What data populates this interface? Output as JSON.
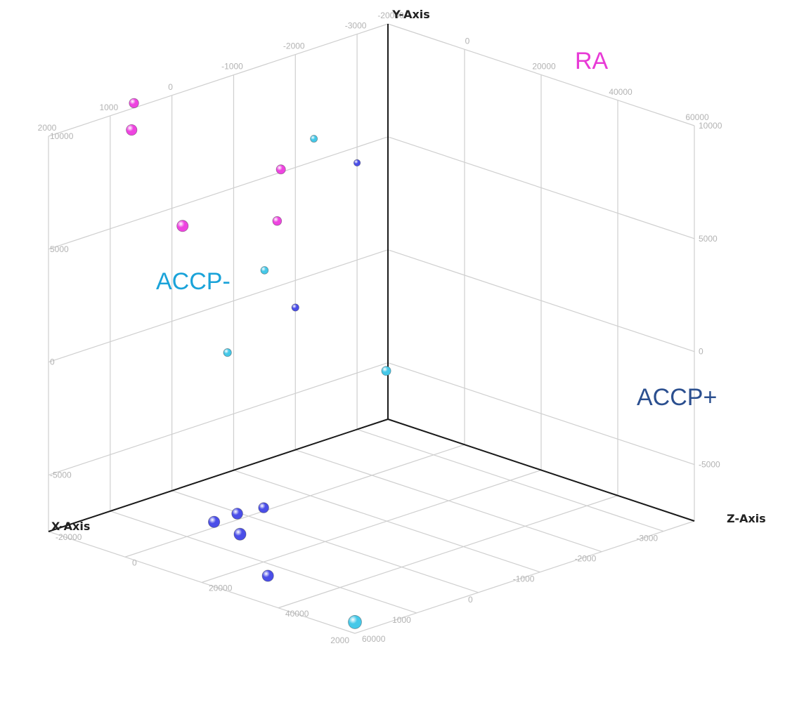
{
  "chart_data": {
    "type": "scatter",
    "projection": "3d",
    "grid": true,
    "x_label": "X-Axis",
    "y_label": "Y-Axis",
    "z_label": "Z-Axis",
    "x_ticks": [
      -3000,
      -2000,
      -1000,
      0,
      1000,
      2000
    ],
    "x_tick_labels": [
      "-3000",
      "-2000",
      "-1000",
      "0",
      "1000",
      "2000"
    ],
    "y_ticks": [
      -5000,
      0,
      5000,
      10000
    ],
    "y_tick_labels": [
      "-5000",
      "0",
      "5000",
      "10000"
    ],
    "z_ticks": [
      -20000,
      0,
      20000,
      40000,
      60000
    ],
    "z_tick_labels": [
      "-20000",
      "0",
      "20000",
      "40000",
      "60000"
    ],
    "xlim": [
      -3500,
      2000
    ],
    "ylim": [
      -7500,
      10000
    ],
    "zlim": [
      -20000,
      60000
    ],
    "annotations": [
      {
        "text": "RA",
        "color": "#e83ad6"
      },
      {
        "text": "ACCP-",
        "color": "#1aa3d9"
      },
      {
        "text": "ACCP+",
        "color": "#2b4f8f"
      }
    ],
    "series": [
      {
        "color": "#ee44e0",
        "points": [
          {
            "x": 1050,
            "y": 11000,
            "z": -13000
          },
          {
            "x": 2000,
            "y": 11500,
            "z": 1700
          },
          {
            "x": 2000,
            "y": 8000,
            "z": 15000
          },
          {
            "x": -400,
            "y": 7600,
            "z": 2000
          },
          {
            "x": -600,
            "y": 4900,
            "z": -2200
          }
        ]
      },
      {
        "color": "#45c8e8",
        "points": [
          {
            "x": -2300,
            "y": 6000,
            "z": -20000
          },
          {
            "x": -900,
            "y": -2200,
            "z": -20000
          },
          {
            "x": -1500,
            "y": 900,
            "z": -20000
          },
          {
            "x": -1300,
            "y": -1400,
            "z": 15000
          },
          {
            "x": 2000,
            "y": -7000,
            "z": 60000
          }
        ]
      },
      {
        "color": "#4a4ee8",
        "points": [
          {
            "x": -3000,
            "y": 4300,
            "z": -20000
          },
          {
            "x": -2000,
            "y": -1200,
            "z": -20000
          },
          {
            "x": 500,
            "y": -6000,
            "z": 12000
          },
          {
            "x": 1300,
            "y": -5200,
            "z": 18000
          },
          {
            "x": 1800,
            "y": -5000,
            "z": 20000
          },
          {
            "x": 1300,
            "y": -7500,
            "z": 26000
          },
          {
            "x": 2000,
            "y": -4800,
            "z": 30000
          }
        ]
      }
    ]
  }
}
